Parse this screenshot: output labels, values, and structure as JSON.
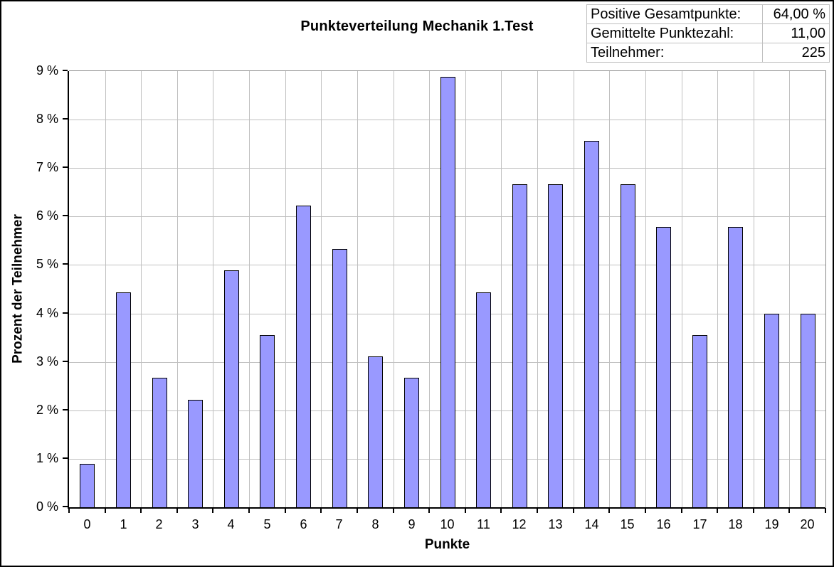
{
  "stats_box": {
    "rows": [
      {
        "label": "Positive Gesamtpunkte:",
        "value": "64,00 %"
      },
      {
        "label": "Gemittelte Punktezahl:",
        "value": "11,00"
      },
      {
        "label": "Teilnehmer:",
        "value": "225"
      }
    ]
  },
  "chart_data": {
    "type": "bar",
    "title": "Punkteverteilung Mechanik 1.Test",
    "xlabel": "Punkte",
    "ylabel": "Prozent der Teilnehmer",
    "categories": [
      "0",
      "1",
      "2",
      "3",
      "4",
      "5",
      "6",
      "7",
      "8",
      "9",
      "10",
      "11",
      "12",
      "13",
      "14",
      "15",
      "16",
      "17",
      "18",
      "19",
      "20"
    ],
    "values": [
      0.89,
      4.44,
      2.67,
      2.22,
      4.89,
      3.56,
      6.22,
      5.33,
      3.11,
      2.67,
      8.89,
      4.44,
      6.67,
      6.67,
      7.56,
      6.67,
      5.78,
      3.56,
      5.78,
      4.0,
      4.0
    ],
    "ylim": [
      0,
      9
    ],
    "ytick_step": 1,
    "ytick_suffix": " %",
    "grid": true,
    "legend": "none",
    "bar_color": "#9999ff",
    "bar_border_color": "#000000",
    "gridline_color": "#c0c0c0"
  }
}
